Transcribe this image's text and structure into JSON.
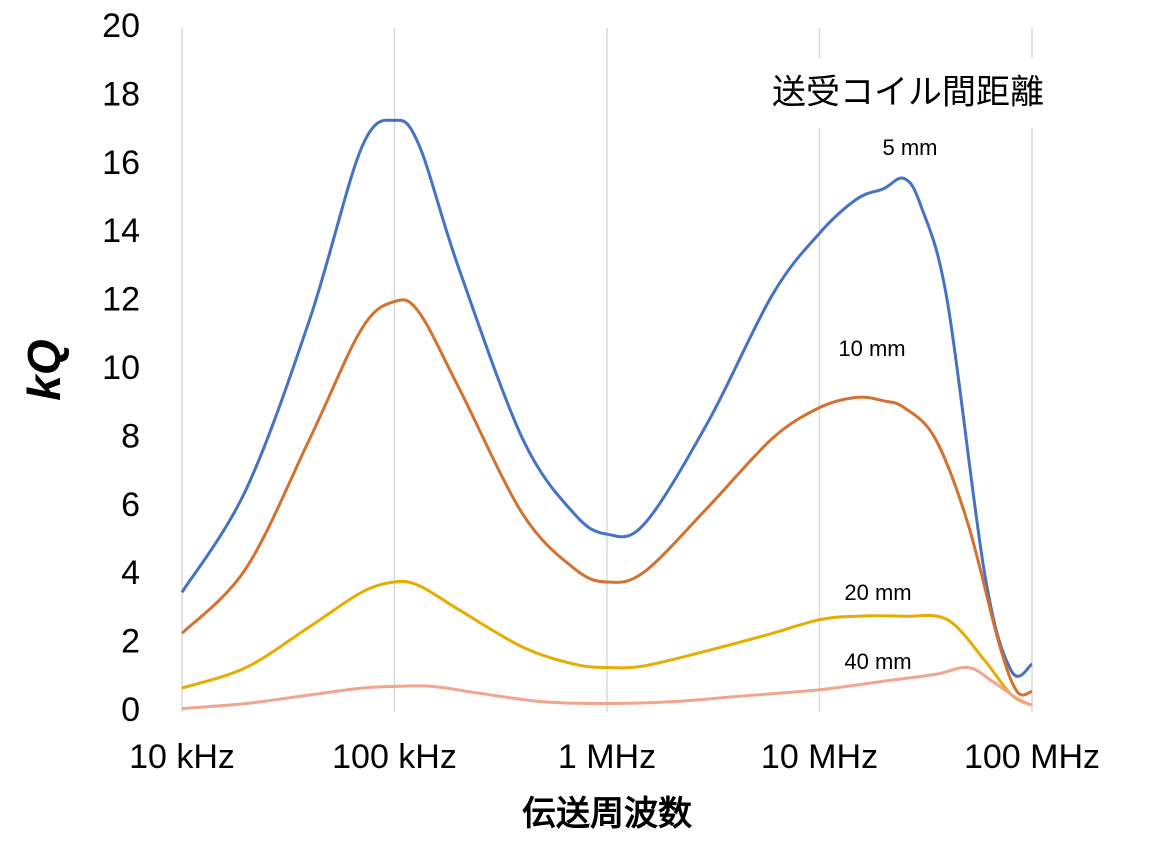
{
  "chart_data": {
    "type": "line",
    "title": "",
    "xlabel": "伝送周波数",
    "ylabel": "kQ",
    "legend_title": "送受コイル間距離",
    "x_scale": "log",
    "xlim_hz": [
      10000,
      100000000
    ],
    "ylim": [
      0,
      20
    ],
    "y_ticks": [
      0,
      2,
      4,
      6,
      8,
      10,
      12,
      14,
      16,
      18,
      20
    ],
    "x_ticks": [
      {
        "value": 10000,
        "label": "10 kHz"
      },
      {
        "value": 100000,
        "label": "100 kHz"
      },
      {
        "value": 1000000,
        "label": "1 MHz"
      },
      {
        "value": 10000000,
        "label": "10 MHz"
      },
      {
        "value": 100000000,
        "label": "100 MHz"
      }
    ],
    "grid": "vertical",
    "series": [
      {
        "name": "5 mm",
        "color": "#4472c4",
        "points": [
          [
            10000,
            3.5
          ],
          [
            20000,
            6.5
          ],
          [
            40000,
            11.5
          ],
          [
            70000,
            16.5
          ],
          [
            100000,
            17.3
          ],
          [
            130000,
            16.6
          ],
          [
            200000,
            13.0
          ],
          [
            400000,
            8.0
          ],
          [
            700000,
            5.8
          ],
          [
            1000000,
            5.2
          ],
          [
            1500000,
            5.5
          ],
          [
            3000000,
            8.5
          ],
          [
            6000000,
            12.2
          ],
          [
            10000000,
            14.0
          ],
          [
            15000000,
            15.0
          ],
          [
            20000000,
            15.3
          ],
          [
            25000000,
            15.6
          ],
          [
            30000000,
            14.8
          ],
          [
            40000000,
            12.0
          ],
          [
            60000000,
            4.0
          ],
          [
            80000000,
            1.2
          ],
          [
            100000000,
            1.4
          ]
        ]
      },
      {
        "name": "10 mm",
        "color": "#d4712f",
        "points": [
          [
            10000,
            2.3
          ],
          [
            20000,
            4.2
          ],
          [
            40000,
            8.0
          ],
          [
            70000,
            11.2
          ],
          [
            100000,
            12.0
          ],
          [
            130000,
            11.7
          ],
          [
            200000,
            9.5
          ],
          [
            400000,
            5.8
          ],
          [
            700000,
            4.2
          ],
          [
            1000000,
            3.8
          ],
          [
            1500000,
            4.1
          ],
          [
            3000000,
            6.0
          ],
          [
            6000000,
            8.0
          ],
          [
            10000000,
            8.9
          ],
          [
            15000000,
            9.2
          ],
          [
            20000000,
            9.1
          ],
          [
            25000000,
            8.9
          ],
          [
            35000000,
            8.0
          ],
          [
            50000000,
            5.5
          ],
          [
            70000000,
            2.0
          ],
          [
            85000000,
            0.6
          ],
          [
            100000000,
            0.6
          ]
        ]
      },
      {
        "name": "20 mm",
        "color": "#e6ac00",
        "points": [
          [
            10000,
            0.7
          ],
          [
            20000,
            1.3
          ],
          [
            40000,
            2.5
          ],
          [
            70000,
            3.5
          ],
          [
            100000,
            3.8
          ],
          [
            130000,
            3.7
          ],
          [
            200000,
            3.0
          ],
          [
            400000,
            1.9
          ],
          [
            700000,
            1.4
          ],
          [
            1000000,
            1.3
          ],
          [
            1500000,
            1.35
          ],
          [
            3000000,
            1.8
          ],
          [
            6000000,
            2.3
          ],
          [
            10000000,
            2.7
          ],
          [
            15000000,
            2.8
          ],
          [
            25000000,
            2.8
          ],
          [
            40000000,
            2.7
          ],
          [
            60000000,
            1.5
          ],
          [
            80000000,
            0.5
          ],
          [
            100000000,
            0.2
          ]
        ]
      },
      {
        "name": "40 mm",
        "color": "#f0a58c",
        "points": [
          [
            10000,
            0.1
          ],
          [
            20000,
            0.25
          ],
          [
            40000,
            0.5
          ],
          [
            70000,
            0.7
          ],
          [
            100000,
            0.75
          ],
          [
            150000,
            0.75
          ],
          [
            250000,
            0.55
          ],
          [
            500000,
            0.3
          ],
          [
            1000000,
            0.25
          ],
          [
            2000000,
            0.3
          ],
          [
            4000000,
            0.45
          ],
          [
            10000000,
            0.65
          ],
          [
            20000000,
            0.9
          ],
          [
            35000000,
            1.1
          ],
          [
            50000000,
            1.3
          ],
          [
            65000000,
            0.9
          ],
          [
            85000000,
            0.4
          ],
          [
            100000000,
            0.2
          ]
        ]
      }
    ]
  }
}
